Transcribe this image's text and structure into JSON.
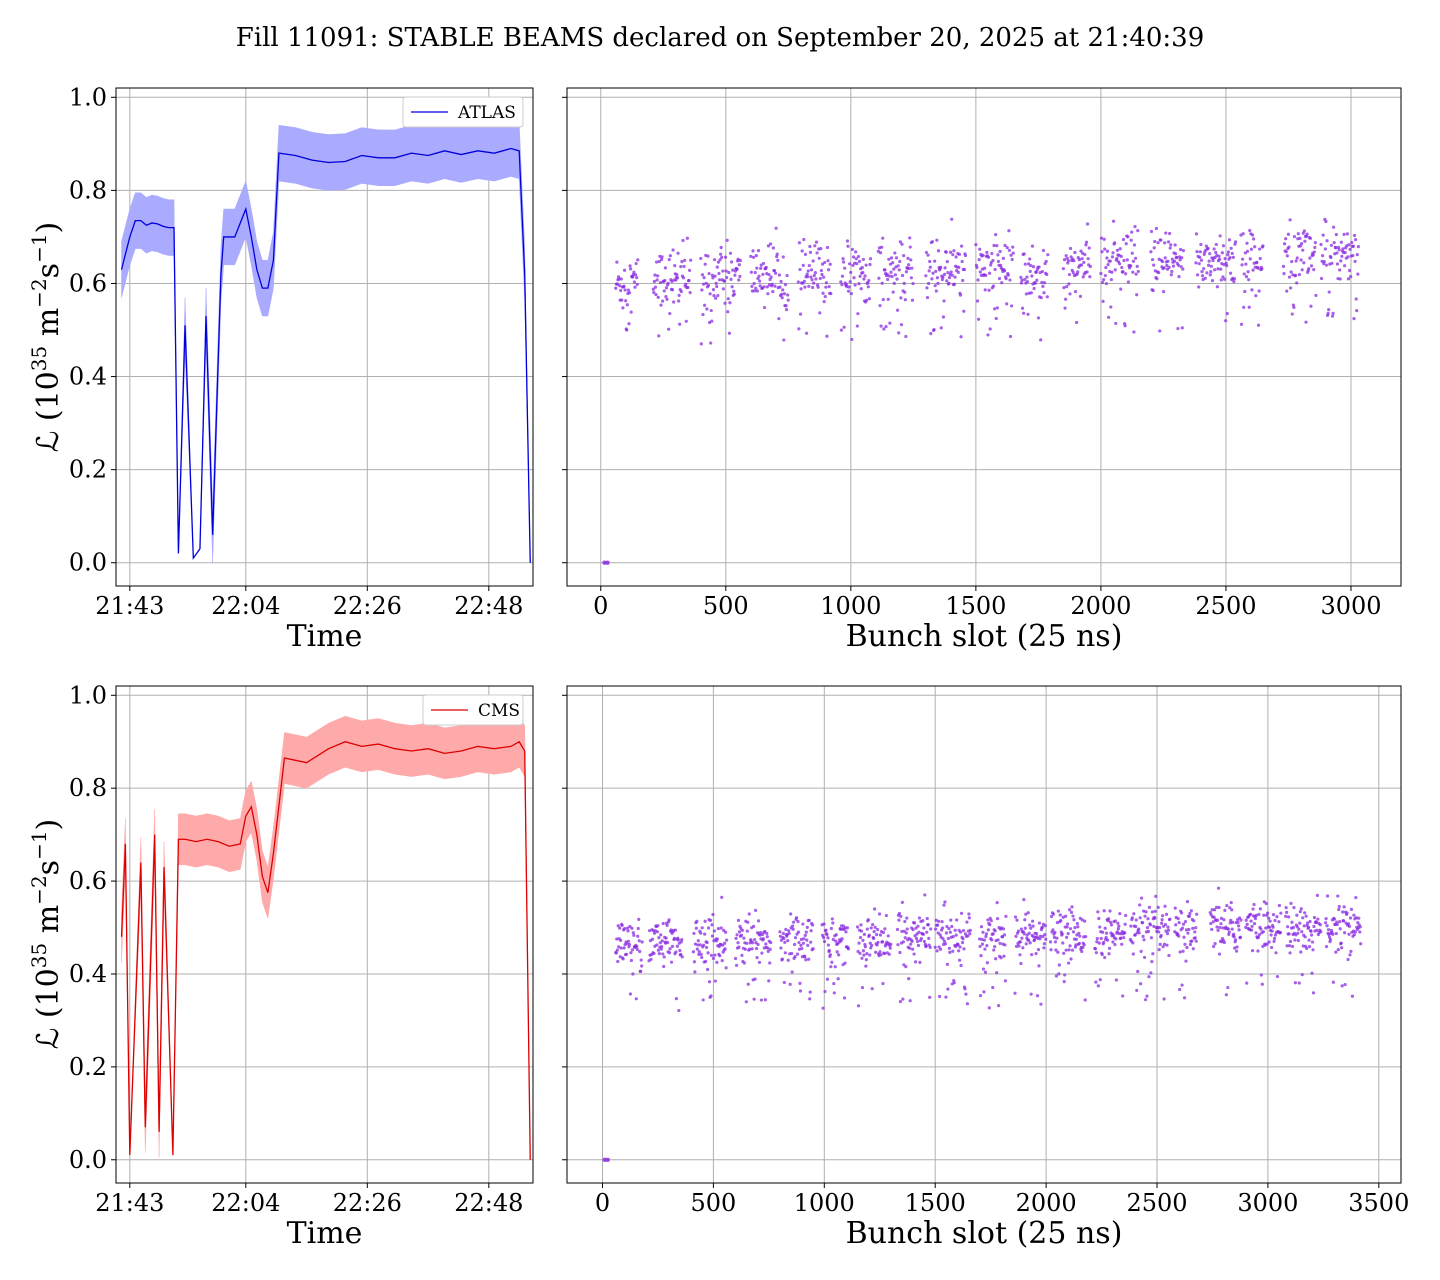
{
  "title": "Fill 11091: STABLE BEAMS declared on September 20, 2025 at 21:40:39",
  "colors": {
    "atlas": "#0000dd",
    "atlas_band": "#aaaaff",
    "cms": "#dd0000",
    "cms_band": "#ffaaaa",
    "bunch_points": "#8a2be2",
    "grid": "#b0b0b0"
  },
  "chart_data": [
    {
      "type": "line",
      "panel": "top-left",
      "legend": "ATLAS",
      "legend_position": "top-right",
      "xlabel": "Time",
      "ylabel_main": "ℒ (10",
      "ylabel_sup1": "35",
      "ylabel_mid": " m",
      "ylabel_sup2": "−2",
      "ylabel_mid2": "s",
      "ylabel_sup3": "−1",
      "ylabel_end": ")",
      "grid": true,
      "xlim": [
        -2.5,
        73
      ],
      "ylim": [
        -0.05,
        1.02
      ],
      "xticks": [
        0,
        21,
        43,
        65
      ],
      "xtick_labels": [
        "21:43",
        "22:04",
        "22:26",
        "22:48"
      ],
      "yticks": [
        0.0,
        0.2,
        0.4,
        0.6,
        0.8,
        1.0
      ],
      "ytick_labels": [
        "0.0",
        "0.2",
        "0.4",
        "0.6",
        "0.8",
        "1.0"
      ],
      "series": [
        {
          "name": "ATLAS",
          "x": [
            -1.5,
            0,
            1,
            2,
            3,
            4,
            5,
            6,
            7,
            8,
            8.8,
            10,
            11.5,
            12.7,
            13.8,
            15,
            16.5,
            17,
            18,
            19,
            20,
            21,
            22,
            23,
            24,
            25,
            26,
            27,
            30,
            33,
            36,
            39,
            42,
            45,
            48,
            51,
            54,
            57,
            60,
            63,
            66,
            69,
            70.5,
            71.5,
            72.5
          ],
          "y": [
            0.63,
            0.7,
            0.735,
            0.735,
            0.725,
            0.73,
            0.728,
            0.723,
            0.72,
            0.72,
            0.02,
            0.51,
            0.01,
            0.03,
            0.53,
            0.06,
            0.62,
            0.7,
            0.7,
            0.7,
            0.73,
            0.76,
            0.7,
            0.63,
            0.59,
            0.59,
            0.65,
            0.88,
            0.875,
            0.865,
            0.86,
            0.862,
            0.875,
            0.87,
            0.87,
            0.88,
            0.875,
            0.885,
            0.877,
            0.885,
            0.88,
            0.89,
            0.885,
            0.62,
            0.0
          ],
          "band_halfwidth": 0.06
        }
      ]
    },
    {
      "type": "scatter",
      "panel": "top-right",
      "xlabel": "Bunch slot (25 ns)",
      "grid": true,
      "xlim": [
        -135,
        3200
      ],
      "ylim": [
        -0.05,
        1.02
      ],
      "xticks": [
        0,
        500,
        1000,
        1500,
        2000,
        2500,
        3000
      ],
      "xtick_labels": [
        "0",
        "500",
        "1000",
        "1500",
        "2000",
        "2500",
        "3000"
      ],
      "yticks": [
        0.0,
        0.2,
        0.4,
        0.6,
        0.8,
        1.0
      ],
      "pilot_bunch": {
        "x": 15,
        "y": 0.0
      },
      "trains": [
        {
          "start": 60,
          "end": 150,
          "mean": 0.6
        },
        {
          "start": 210,
          "end": 360,
          "mean": 0.61
        },
        {
          "start": 400,
          "end": 560,
          "mean": 0.615
        },
        {
          "start": 600,
          "end": 750,
          "mean": 0.62
        },
        {
          "start": 790,
          "end": 920,
          "mean": 0.62
        },
        {
          "start": 960,
          "end": 1080,
          "mean": 0.625
        },
        {
          "start": 1110,
          "end": 1250,
          "mean": 0.625
        },
        {
          "start": 1300,
          "end": 1460,
          "mean": 0.63
        },
        {
          "start": 1500,
          "end": 1650,
          "mean": 0.635
        },
        {
          "start": 1680,
          "end": 1790,
          "mean": 0.62
        },
        {
          "start": 1850,
          "end": 1960,
          "mean": 0.64
        },
        {
          "start": 2000,
          "end": 2150,
          "mean": 0.645
        },
        {
          "start": 2200,
          "end": 2330,
          "mean": 0.645
        },
        {
          "start": 2380,
          "end": 2540,
          "mean": 0.65
        },
        {
          "start": 2560,
          "end": 2650,
          "mean": 0.645
        },
        {
          "start": 2730,
          "end": 2860,
          "mean": 0.665
        },
        {
          "start": 2880,
          "end": 3030,
          "mean": 0.67
        }
      ],
      "spread": 0.055
    },
    {
      "type": "line",
      "panel": "bottom-left",
      "legend": "CMS",
      "legend_position": "top-right",
      "xlabel": "Time",
      "grid": true,
      "xlim": [
        -2.5,
        73
      ],
      "ylim": [
        -0.05,
        1.02
      ],
      "xticks": [
        0,
        21,
        43,
        65
      ],
      "xtick_labels": [
        "21:43",
        "22:04",
        "22:26",
        "22:48"
      ],
      "yticks": [
        0.0,
        0.2,
        0.4,
        0.6,
        0.8,
        1.0
      ],
      "ytick_labels": [
        "0.0",
        "0.2",
        "0.4",
        "0.6",
        "0.8",
        "1.0"
      ],
      "series": [
        {
          "name": "CMS",
          "x": [
            -1.5,
            -0.8,
            0,
            2,
            2.8,
            4.5,
            5.3,
            6.2,
            7.8,
            8.8,
            10,
            12,
            14,
            16,
            18,
            20,
            21,
            22,
            23,
            24,
            25,
            26,
            28,
            30,
            32,
            34,
            36,
            39,
            42,
            45,
            48,
            51,
            54,
            57,
            60,
            63,
            66,
            69,
            70.5,
            71.5,
            72.5
          ],
          "y": [
            0.48,
            0.68,
            0.01,
            0.64,
            0.07,
            0.7,
            0.06,
            0.63,
            0.01,
            0.69,
            0.69,
            0.685,
            0.69,
            0.685,
            0.675,
            0.68,
            0.74,
            0.76,
            0.7,
            0.61,
            0.575,
            0.66,
            0.865,
            0.86,
            0.855,
            0.87,
            0.885,
            0.9,
            0.89,
            0.895,
            0.885,
            0.88,
            0.885,
            0.875,
            0.88,
            0.89,
            0.885,
            0.89,
            0.9,
            0.88,
            0.0
          ],
          "band_halfwidth": 0.055
        }
      ]
    },
    {
      "type": "scatter",
      "panel": "bottom-right",
      "xlabel": "Bunch slot (25 ns)",
      "grid": true,
      "xlim": [
        -160,
        3600
      ],
      "ylim": [
        -0.05,
        1.02
      ],
      "xticks": [
        0,
        500,
        1000,
        1500,
        2000,
        2500,
        3000,
        3500
      ],
      "xtick_labels": [
        "0",
        "500",
        "1000",
        "1500",
        "2000",
        "2500",
        "3000",
        "3500"
      ],
      "yticks": [
        0.0,
        0.2,
        0.4,
        0.6,
        0.8,
        1.0
      ],
      "pilot_bunch": {
        "x": 10,
        "y": 0.0
      },
      "trains": [
        {
          "start": 60,
          "end": 180,
          "mean": 0.46
        },
        {
          "start": 210,
          "end": 360,
          "mean": 0.465
        },
        {
          "start": 410,
          "end": 560,
          "mean": 0.47
        },
        {
          "start": 600,
          "end": 760,
          "mean": 0.47
        },
        {
          "start": 800,
          "end": 950,
          "mean": 0.475
        },
        {
          "start": 990,
          "end": 1110,
          "mean": 0.47
        },
        {
          "start": 1150,
          "end": 1300,
          "mean": 0.475
        },
        {
          "start": 1330,
          "end": 1480,
          "mean": 0.48
        },
        {
          "start": 1500,
          "end": 1660,
          "mean": 0.485
        },
        {
          "start": 1700,
          "end": 1820,
          "mean": 0.475
        },
        {
          "start": 1860,
          "end": 2000,
          "mean": 0.48
        },
        {
          "start": 2020,
          "end": 2180,
          "mean": 0.485
        },
        {
          "start": 2220,
          "end": 2360,
          "mean": 0.485
        },
        {
          "start": 2380,
          "end": 2560,
          "mean": 0.49
        },
        {
          "start": 2580,
          "end": 2680,
          "mean": 0.485
        },
        {
          "start": 2740,
          "end": 2880,
          "mean": 0.5
        },
        {
          "start": 2900,
          "end": 3060,
          "mean": 0.5
        },
        {
          "start": 3080,
          "end": 3240,
          "mean": 0.495
        },
        {
          "start": 3260,
          "end": 3420,
          "mean": 0.5
        }
      ],
      "spread": 0.045
    }
  ]
}
